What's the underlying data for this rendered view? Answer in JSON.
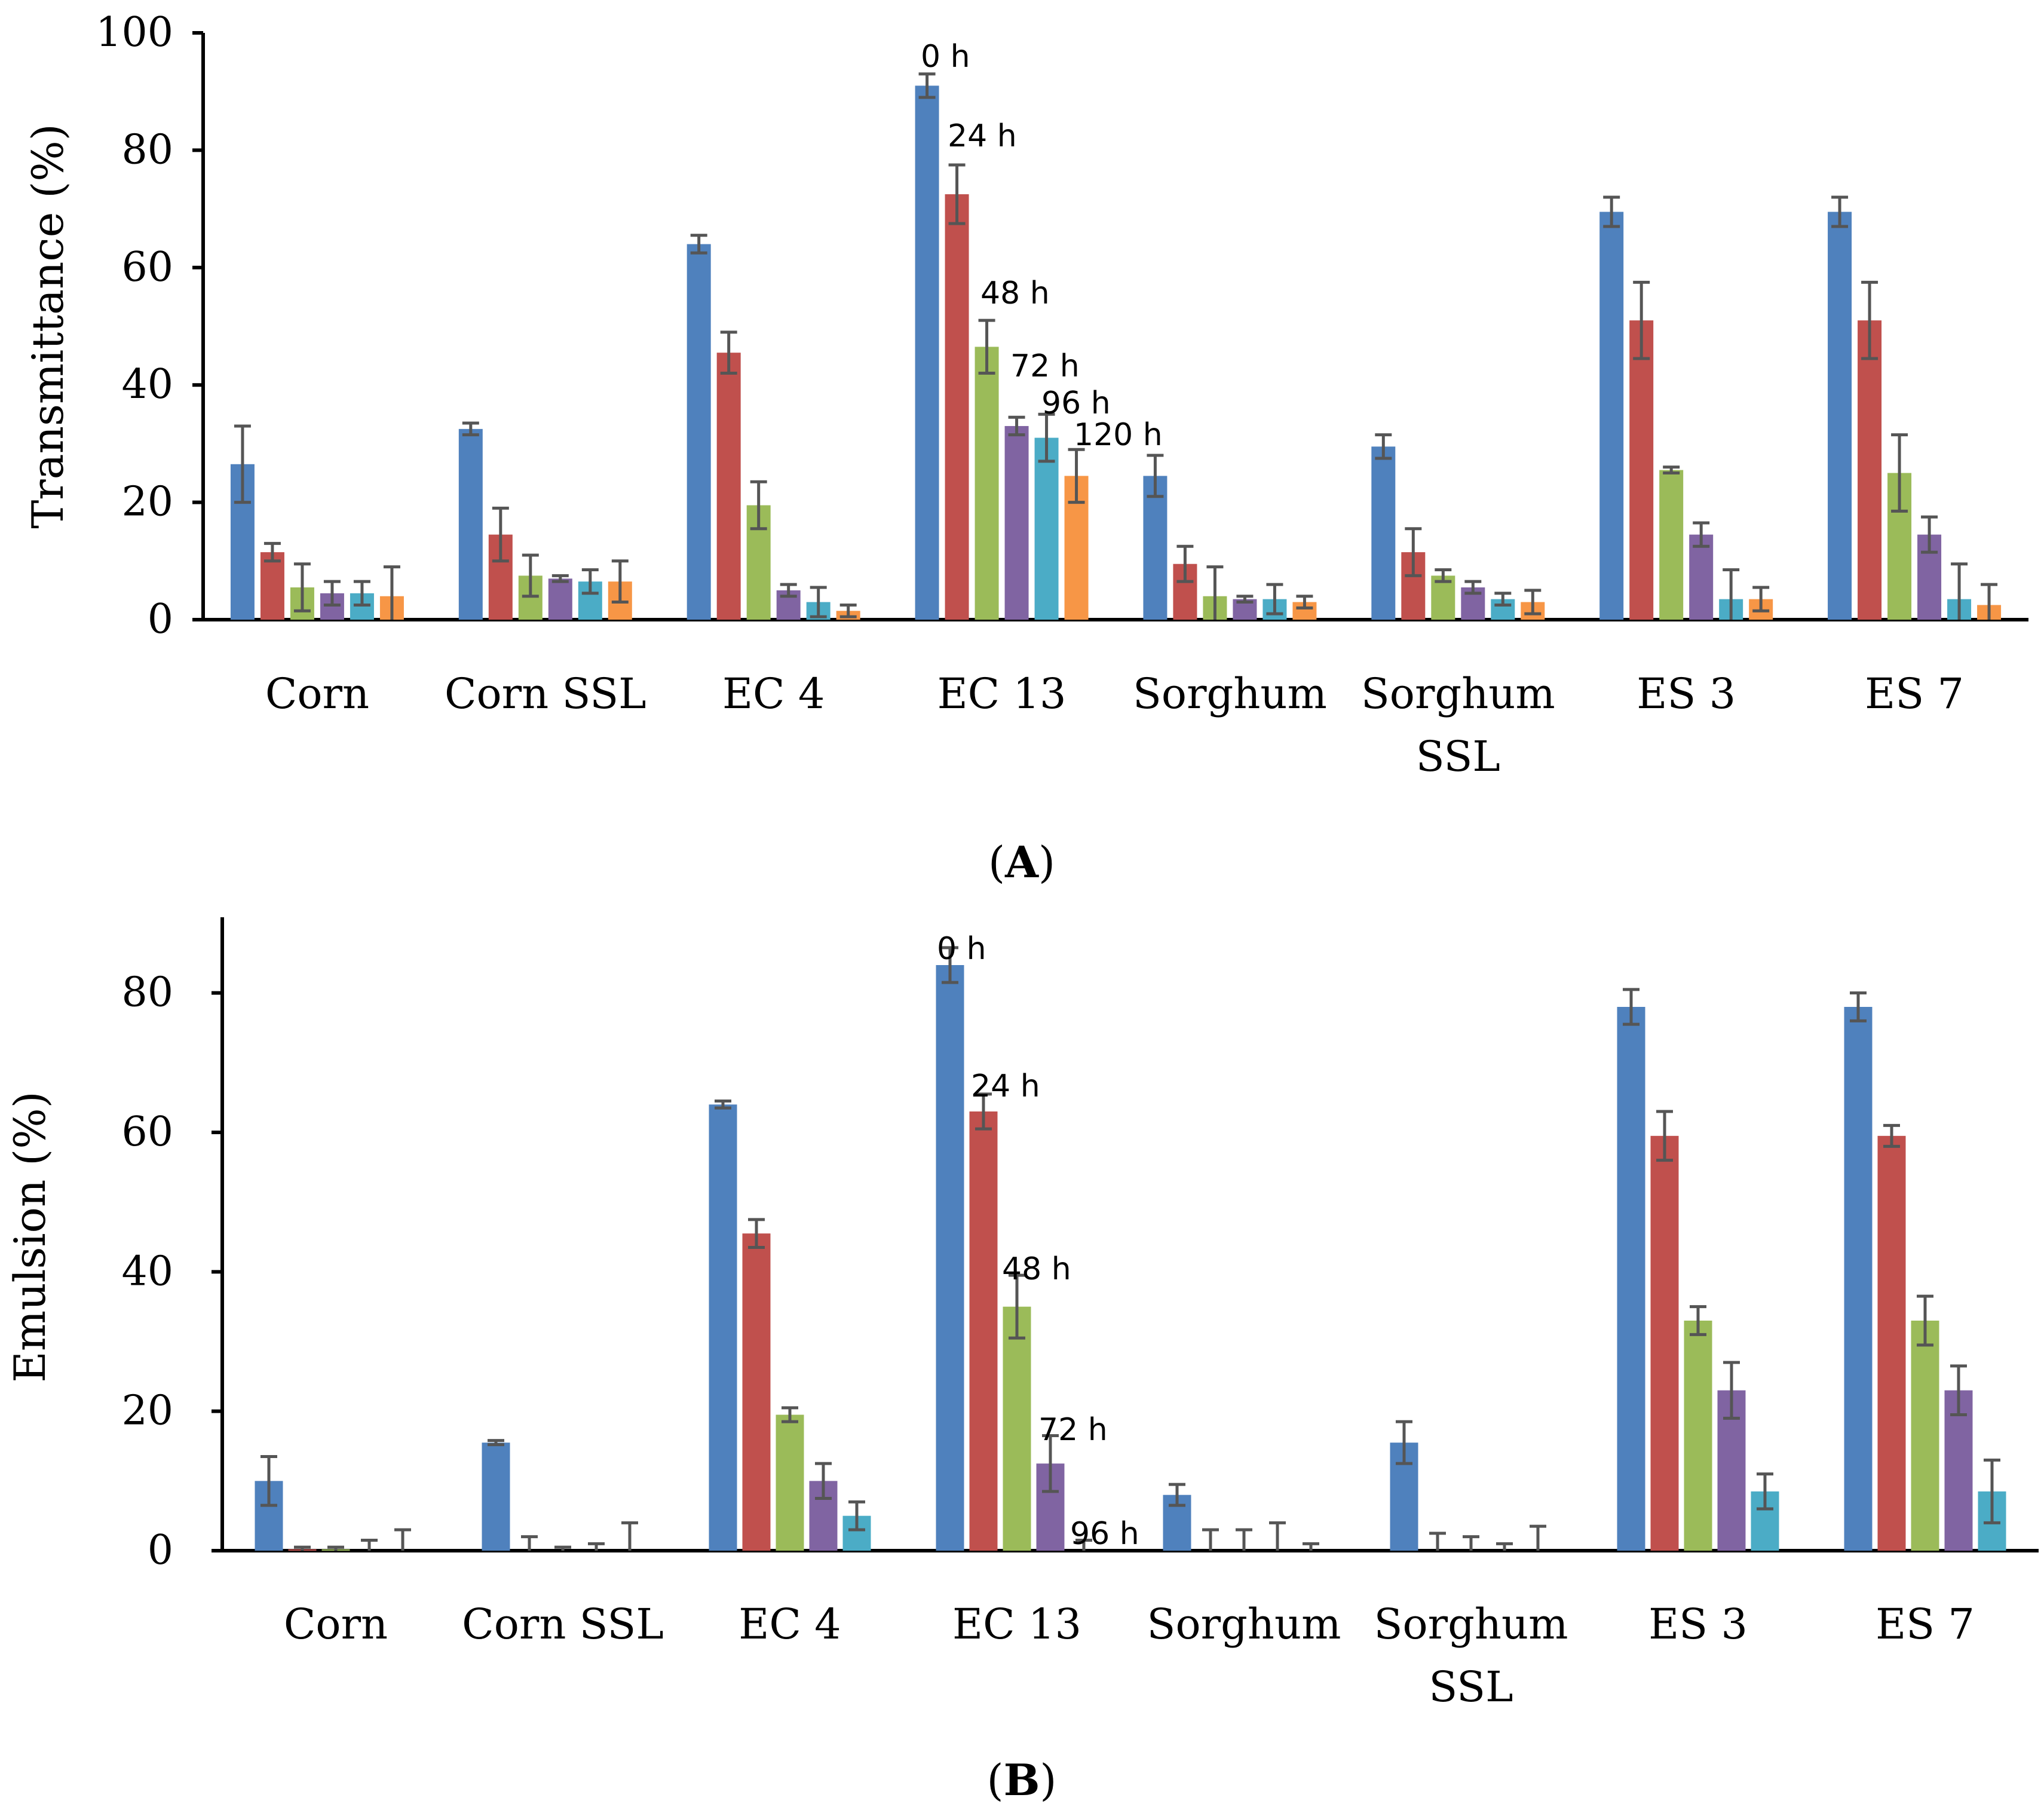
{
  "figure_labels": {
    "A": {
      "open": "(",
      "letter": "A",
      "close": ")"
    },
    "B": {
      "open": "(",
      "letter": "B",
      "close": ")"
    }
  },
  "series_colors": [
    "#4f81bd",
    "#c0504d",
    "#9bbb59",
    "#8064a2",
    "#4bacc6",
    "#f79646"
  ],
  "chart_data": [
    {
      "id": "A",
      "type": "bar",
      "title": "",
      "xlabel": "",
      "ylabel": "Transmittance (%)",
      "ylim": [
        0,
        100
      ],
      "yticks": [
        0,
        20,
        40,
        60,
        80,
        100
      ],
      "grid": false,
      "categories": [
        "Corn",
        "Corn SSL",
        "EC 4",
        "EC 13",
        "Sorghum",
        "Sorghum SSL",
        "ES 3",
        "ES 7"
      ],
      "series": [
        {
          "name": "0 h",
          "values": [
            26.5,
            32.5,
            64,
            91,
            24.5,
            29.5,
            69.5,
            69.5
          ],
          "errors": [
            6.5,
            1.0,
            1.5,
            2.0,
            3.5,
            2.0,
            2.5,
            2.5
          ]
        },
        {
          "name": "24 h",
          "values": [
            11.5,
            14.5,
            45.5,
            72.5,
            9.5,
            11.5,
            51,
            51
          ],
          "errors": [
            1.5,
            4.5,
            3.5,
            5.0,
            3.0,
            4.0,
            6.5,
            6.5
          ]
        },
        {
          "name": "48 h",
          "values": [
            5.5,
            7.5,
            19.5,
            46.5,
            4.0,
            7.5,
            25.5,
            25
          ],
          "errors": [
            4.0,
            3.5,
            4.0,
            4.5,
            5.0,
            1.0,
            0.5,
            6.5
          ]
        },
        {
          "name": "72 h",
          "values": [
            4.5,
            7,
            5,
            33,
            3.5,
            5.5,
            14.5,
            14.5
          ],
          "errors": [
            2.0,
            0.5,
            1.0,
            1.5,
            0.5,
            1.0,
            2.0,
            3.0
          ]
        },
        {
          "name": "96 h",
          "values": [
            4.5,
            6.5,
            3,
            31,
            3.5,
            3.5,
            3.5,
            3.5
          ],
          "errors": [
            2.0,
            2.0,
            2.5,
            4.0,
            2.5,
            1.0,
            5.0,
            6.0
          ]
        },
        {
          "name": "120 h",
          "values": [
            4,
            6.5,
            1.5,
            24.5,
            3,
            3,
            3.5,
            2.5
          ],
          "errors": [
            5.0,
            3.5,
            1.0,
            4.5,
            1.0,
            2.0,
            2.0,
            3.5
          ]
        }
      ],
      "annotations": [
        {
          "text": "0 h",
          "category": "EC 13",
          "series": 0
        },
        {
          "text": "24 h",
          "category": "EC 13",
          "series": 1
        },
        {
          "text": "48 h",
          "category": "EC 13",
          "series": 2
        },
        {
          "text": "72 h",
          "category": "EC 13",
          "series": 3
        },
        {
          "text": "96 h",
          "category": "EC 13",
          "series": 4
        },
        {
          "text": "120 h",
          "category": "EC 13",
          "series": 5
        }
      ]
    },
    {
      "id": "B",
      "type": "bar",
      "title": "",
      "xlabel": "",
      "ylabel": "Emulsion (%)",
      "ylim": [
        0,
        90
      ],
      "yticks": [
        0,
        20,
        40,
        60,
        80
      ],
      "grid": false,
      "categories": [
        "Corn",
        "Corn SSL",
        "EC 4",
        "EC 13",
        "Sorghum",
        "Sorghum SSL",
        "ES 3",
        "ES 7"
      ],
      "series": [
        {
          "name": "0 h",
          "values": [
            10,
            15.5,
            64,
            84,
            8,
            15.5,
            78,
            78
          ],
          "errors": [
            3.5,
            0.3,
            0.5,
            2.5,
            1.5,
            3.0,
            2.5,
            2.0
          ]
        },
        {
          "name": "24 h",
          "values": [
            0.2,
            0,
            45.5,
            63,
            0,
            0,
            59.5,
            59.5
          ],
          "errors": [
            0.3,
            2.0,
            2.0,
            2.5,
            3.0,
            2.5,
            3.5,
            1.5
          ]
        },
        {
          "name": "48 h",
          "values": [
            0.2,
            0,
            19.5,
            35,
            0,
            0,
            33,
            33
          ],
          "errors": [
            0.3,
            0.5,
            1.0,
            4.5,
            3.0,
            2.0,
            2.0,
            3.5
          ]
        },
        {
          "name": "72 h",
          "values": [
            0,
            0,
            10,
            12.5,
            0,
            0,
            23,
            23
          ],
          "errors": [
            1.5,
            1.0,
            2.5,
            4.0,
            4.0,
            1.0,
            4.0,
            3.5
          ]
        },
        {
          "name": "96 h",
          "values": [
            0,
            0,
            5,
            0,
            0,
            0,
            8.5,
            8.5
          ],
          "errors": [
            3.0,
            4.0,
            2.0,
            1.5,
            1.0,
            3.5,
            2.5,
            4.5
          ]
        }
      ],
      "annotations": [
        {
          "text": "0 h",
          "category": "EC 13",
          "series": 0
        },
        {
          "text": "24 h",
          "category": "EC 13",
          "series": 1
        },
        {
          "text": "48 h",
          "category": "EC 13",
          "series": 2
        },
        {
          "text": "72 h",
          "category": "EC 13",
          "series": 3
        },
        {
          "text": "96 h",
          "category": "EC 13",
          "series": 4
        }
      ]
    }
  ]
}
